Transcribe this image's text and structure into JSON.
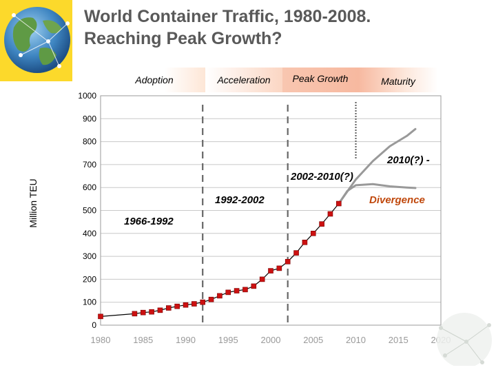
{
  "slide": {
    "title_line1": "World Container Traffic, 1980-2008.",
    "title_line2": "Reaching Peak Growth?"
  },
  "phases": [
    {
      "label": "Adoption"
    },
    {
      "label": "Acceleration"
    },
    {
      "label": "Peak Growth"
    },
    {
      "label": "Maturity"
    }
  ],
  "annotations": {
    "period_1966_1992": "1966-1992",
    "period_1992_2002": "1992-2002",
    "period_2002_2010": "2002-2010(?)",
    "period_2010": "2010(?) -",
    "divergence": "Divergence"
  },
  "colors": {
    "accent": "#fcd92b",
    "marker": "#cc1111",
    "projection": "#999999",
    "divergence": "#c0480c"
  },
  "chart_data": {
    "type": "line",
    "title": "",
    "xlabel": "",
    "ylabel": "Million TEU",
    "xlim": [
      1980,
      2020
    ],
    "ylim": [
      0,
      1000
    ],
    "x_ticks": [
      1980,
      1985,
      1990,
      1995,
      2000,
      2005,
      2010,
      2015,
      2020
    ],
    "y_ticks": [
      0,
      100,
      200,
      300,
      400,
      500,
      600,
      700,
      800,
      900,
      1000
    ],
    "grid": true,
    "series": [
      {
        "marker": "square",
        "x": [
          1980,
          1984,
          1985,
          1986,
          1987,
          1988,
          1989,
          1990,
          1991,
          1992,
          1993,
          1994,
          1995,
          1996,
          1997,
          1998,
          1999,
          2000,
          2001,
          2002,
          2003,
          2004,
          2005,
          2006,
          2007,
          2008
        ],
        "y": [
          38,
          50,
          55,
          58,
          65,
          75,
          82,
          88,
          93,
          100,
          112,
          128,
          143,
          150,
          155,
          170,
          200,
          237,
          248,
          277,
          315,
          361,
          400,
          441,
          485,
          530
        ]
      },
      {
        "style": "projection-high",
        "x": [
          2008,
          2010,
          2012,
          2014,
          2016,
          2017
        ],
        "y": [
          530,
          635,
          715,
          780,
          825,
          855
        ]
      },
      {
        "style": "projection-low",
        "x": [
          2008,
          2009,
          2010,
          2012,
          2014,
          2016,
          2017
        ],
        "y": [
          530,
          585,
          610,
          615,
          605,
          600,
          598
        ]
      }
    ],
    "phase_dividers": [
      1992,
      2002,
      2010
    ]
  }
}
